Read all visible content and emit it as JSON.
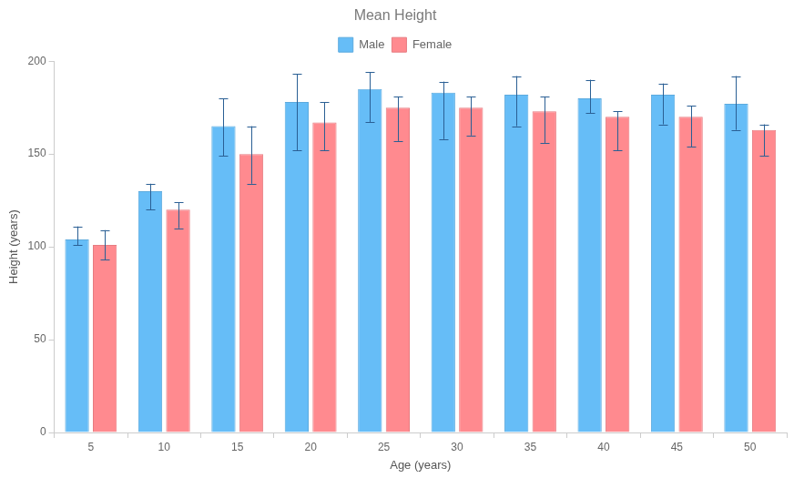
{
  "chart_data": {
    "type": "bar",
    "title": "Mean Height",
    "x_label": "Age (years)",
    "y_label": "Height (years)",
    "categories": [
      "5",
      "10",
      "15",
      "20",
      "25",
      "30",
      "35",
      "40",
      "45",
      "50"
    ],
    "series": [
      {
        "name": "Male",
        "color": "#66bdf7",
        "values": [
          104,
          130,
          165,
          178,
          185,
          183,
          182,
          180,
          182,
          177
        ],
        "error_lower": [
          101,
          120,
          149,
          152,
          167,
          158,
          165,
          172,
          166,
          163
        ],
        "error_upper": [
          111,
          134,
          180,
          193,
          194,
          189,
          192,
          190,
          188,
          192
        ]
      },
      {
        "name": "Female",
        "color": "#ff8a8f",
        "values": [
          101,
          120,
          150,
          167,
          175,
          175,
          173,
          170,
          170,
          163
        ],
        "error_lower": [
          93,
          110,
          134,
          152,
          157,
          160,
          156,
          152,
          154,
          149
        ],
        "error_upper": [
          109,
          124,
          165,
          178,
          181,
          181,
          181,
          173,
          176,
          166
        ]
      }
    ],
    "ylim": [
      0,
      200
    ],
    "yticks": [
      0,
      50,
      100,
      150,
      200
    ],
    "grid": false,
    "legend": "top"
  }
}
